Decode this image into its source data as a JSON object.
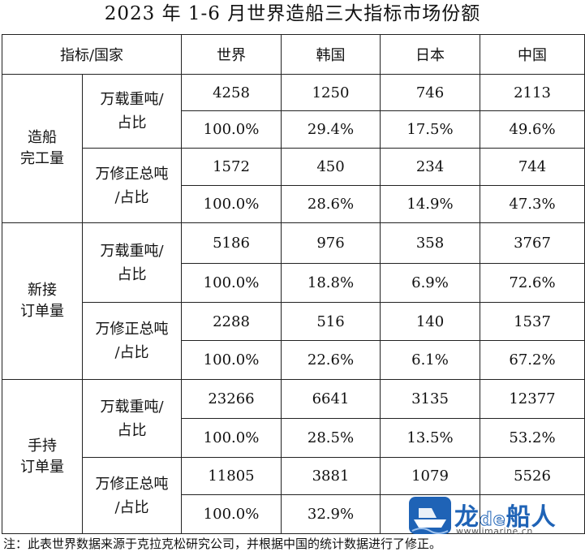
{
  "title": "2023 年 1-6 月世界造船三大指标市场份额",
  "header": {
    "indicator_country": "指标/国家",
    "world": "世界",
    "korea": "韩国",
    "japan": "日本",
    "china": "中国"
  },
  "sections": [
    {
      "category_line1": "造船",
      "category_line2": "完工量",
      "groups": [
        {
          "unit_line1": "万载重吨/",
          "unit_line2": "占比",
          "values": [
            "4258",
            "1250",
            "746",
            "2113"
          ],
          "shares": [
            "100.0%",
            "29.4%",
            "17.5%",
            "49.6%"
          ]
        },
        {
          "unit_line1": "万修正总吨",
          "unit_line2": "/占比",
          "values": [
            "1572",
            "450",
            "234",
            "744"
          ],
          "shares": [
            "100.0%",
            "28.6%",
            "14.9%",
            "47.3%"
          ]
        }
      ]
    },
    {
      "category_line1": "新接",
      "category_line2": "订单量",
      "groups": [
        {
          "unit_line1": "万载重吨/",
          "unit_line2": "占比",
          "values": [
            "5186",
            "976",
            "358",
            "3767"
          ],
          "shares": [
            "100.0%",
            "18.8%",
            "6.9%",
            "72.6%"
          ]
        },
        {
          "unit_line1": "万修正总吨",
          "unit_line2": "/占比",
          "values": [
            "2288",
            "516",
            "140",
            "1537"
          ],
          "shares": [
            "100.0%",
            "22.6%",
            "6.1%",
            "67.2%"
          ]
        }
      ]
    },
    {
      "category_line1": "手持",
      "category_line2": "订单量",
      "groups": [
        {
          "unit_line1": "万载重吨/",
          "unit_line2": "占比",
          "values": [
            "23266",
            "6641",
            "3135",
            "12377"
          ],
          "shares": [
            "100.0%",
            "28.5%",
            "13.5%",
            "53.2%"
          ]
        },
        {
          "unit_line1": "万修正总吨",
          "unit_line2": "/占比",
          "values": [
            "11805",
            "3881",
            "1079",
            "5526"
          ],
          "shares": [
            "100.0%",
            "32.9%",
            "",
            ""
          ]
        }
      ]
    }
  ],
  "note": "注：此表世界数据来源于克拉克松研究公司，并根据中国的统计数据进行了修正。",
  "watermark": {
    "brand_main": "龙",
    "brand_de": "de",
    "brand_tail": "船人",
    "url": "www.imarine.cn",
    "color": "#1f63b6"
  }
}
